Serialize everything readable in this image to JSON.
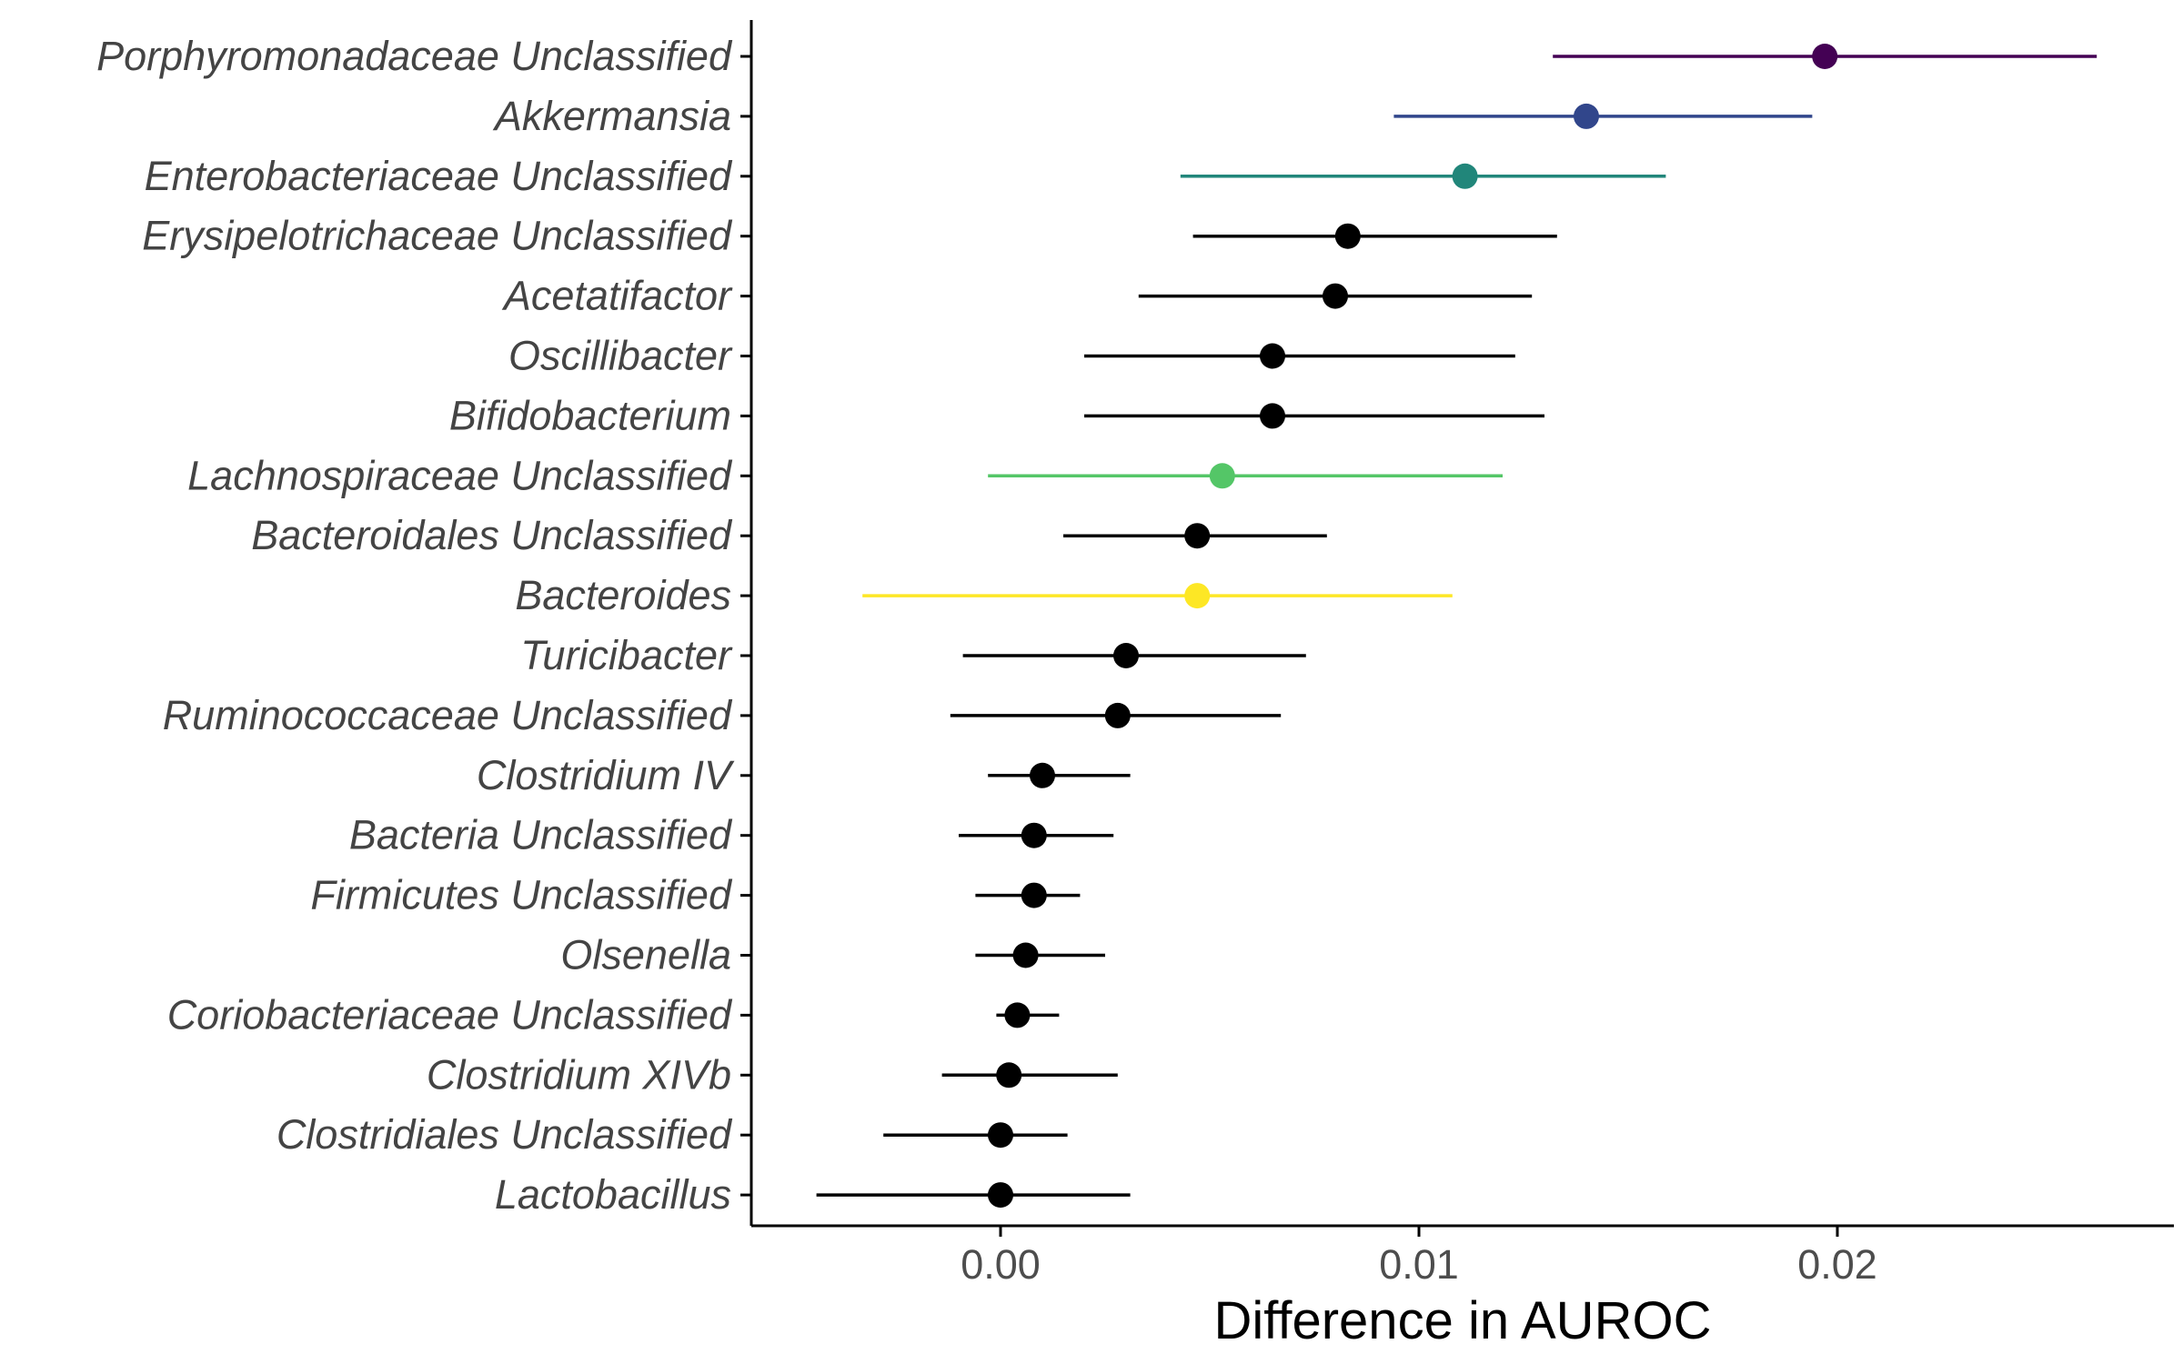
{
  "chart_data": {
    "type": "scatter",
    "subtype": "point-range",
    "title": "",
    "xlabel": "Difference in AUROC",
    "ylabel": "",
    "xlim": [
      -0.0059,
      0.0276
    ],
    "x_ticks": [
      0.0,
      0.01,
      0.02
    ],
    "x_tick_labels": [
      "0.00",
      "0.01",
      "0.02"
    ],
    "grid": false,
    "legend": "none",
    "categories": [
      "Porphyromonadaceae Unclassified",
      "Akkermansia",
      "Enterobacteriaceae Unclassified",
      "Erysipelotrichaceae Unclassified",
      "Acetatifactor",
      "Oscillibacter",
      "Bifidobacterium",
      "Lachnospiraceae Unclassified",
      "Bacteroidales Unclassified",
      "Bacteroides",
      "Turicibacter",
      "Ruminococcaceae Unclassified",
      "Clostridium IV",
      "Bacteria Unclassified",
      "Firmicutes Unclassified",
      "Olsenella",
      "Coriobacteriaceae Unclassified",
      "Clostridium XIVb",
      "Clostridiales Unclassified",
      "Lactobacillus"
    ],
    "points": [
      {
        "estimate": 0.0197,
        "low": 0.0132,
        "high": 0.0262,
        "color": "#440154"
      },
      {
        "estimate": 0.014,
        "low": 0.0094,
        "high": 0.0194,
        "color": "#31468b"
      },
      {
        "estimate": 0.0111,
        "low": 0.0043,
        "high": 0.0159,
        "color": "#21867a"
      },
      {
        "estimate": 0.0083,
        "low": 0.0046,
        "high": 0.0133,
        "color": "#000000"
      },
      {
        "estimate": 0.008,
        "low": 0.0033,
        "high": 0.0127,
        "color": "#000000"
      },
      {
        "estimate": 0.0065,
        "low": 0.002,
        "high": 0.0123,
        "color": "#000000"
      },
      {
        "estimate": 0.0065,
        "low": 0.002,
        "high": 0.013,
        "color": "#000000"
      },
      {
        "estimate": 0.0053,
        "low": -0.0003,
        "high": 0.012,
        "color": "#54c667"
      },
      {
        "estimate": 0.0047,
        "low": 0.0015,
        "high": 0.0078,
        "color": "#000000"
      },
      {
        "estimate": 0.0047,
        "low": -0.0033,
        "high": 0.0108,
        "color": "#fde725"
      },
      {
        "estimate": 0.003,
        "low": -0.0009,
        "high": 0.0073,
        "color": "#000000"
      },
      {
        "estimate": 0.0028,
        "low": -0.0012,
        "high": 0.0067,
        "color": "#000000"
      },
      {
        "estimate": 0.001,
        "low": -0.0003,
        "high": 0.0031,
        "color": "#000000"
      },
      {
        "estimate": 0.0008,
        "low": -0.001,
        "high": 0.0027,
        "color": "#000000"
      },
      {
        "estimate": 0.0008,
        "low": -0.0006,
        "high": 0.0019,
        "color": "#000000"
      },
      {
        "estimate": 0.0006,
        "low": -0.0006,
        "high": 0.0025,
        "color": "#000000"
      },
      {
        "estimate": 0.0004,
        "low": -0.0001,
        "high": 0.0014,
        "color": "#000000"
      },
      {
        "estimate": 0.0002,
        "low": -0.0014,
        "high": 0.0028,
        "color": "#000000"
      },
      {
        "estimate": 0.0,
        "low": -0.0028,
        "high": 0.0016,
        "color": "#000000"
      },
      {
        "estimate": 0.0,
        "low": -0.0044,
        "high": 0.0031,
        "color": "#000000"
      }
    ]
  }
}
